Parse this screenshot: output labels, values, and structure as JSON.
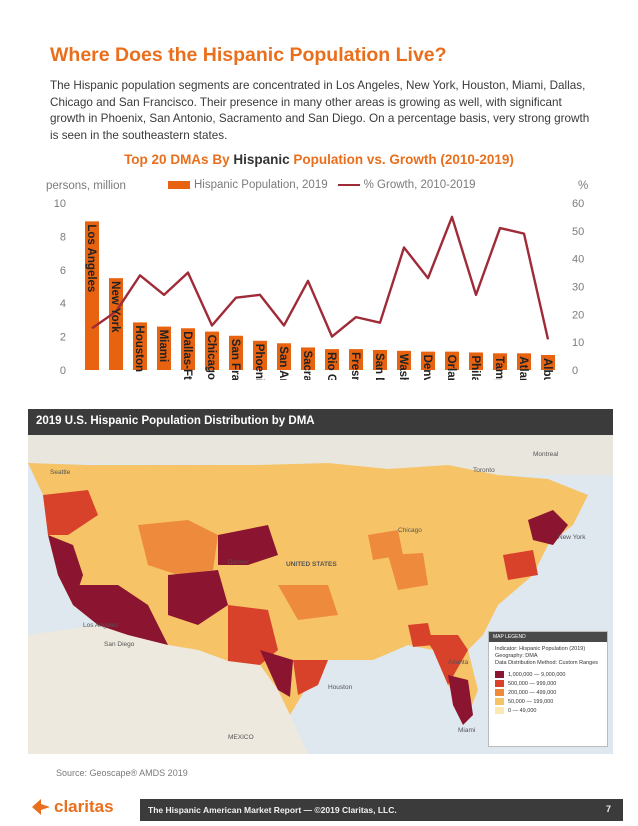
{
  "title": "Where Does the Hispanic Population Live?",
  "intro": "The Hispanic population segments are concentrated in Los Angeles, New York, Houston, Miami, Dallas, Chicago and San Francisco. Their presence in many other areas is growing as well, with significant growth in Phoenix, San Antonio, Sacramento and San Diego. On a percentage basis, very strong growth is seen in the southeastern states.",
  "chart_title": {
    "part1": "Top 20 DMAs By ",
    "highlight": "Hispanic",
    "part2": " Population vs. Growth (2010-2019)"
  },
  "chart_data": {
    "type": "bar",
    "title": "Top 20 DMAs By Hispanic Population vs. Growth (2010-2019)",
    "y_left_label": "persons, million",
    "y_right_label": "%",
    "ylim_left": [
      0,
      10
    ],
    "ylim_right": [
      0,
      60
    ],
    "y_left_ticks": [
      0,
      2,
      4,
      6,
      8,
      10
    ],
    "y_right_ticks": [
      0,
      10,
      20,
      30,
      40,
      50,
      60
    ],
    "categories": [
      "Los Angeles",
      "New York",
      "Houston",
      "Miami",
      "Dallas-Ft. Worth",
      "Chicago",
      "San Francisco",
      "Phoenix",
      "San Antonio",
      "Sacramento",
      "Rio Grande Valley",
      "Fresno-Visalia",
      "San Diego",
      "Washington, DC",
      "Denver",
      "Orlando",
      "Philadelphia",
      "Tampa-St. Petersburg",
      "Atlanta",
      "Albuquerque"
    ],
    "series": [
      {
        "name": "Hispanic Population, 2019",
        "type": "bar",
        "axis": "left",
        "color": "#e8630f",
        "values": [
          8.9,
          5.5,
          2.85,
          2.6,
          2.5,
          2.3,
          2.05,
          1.75,
          1.6,
          1.35,
          1.25,
          1.25,
          1.2,
          1.15,
          1.1,
          1.1,
          1.05,
          1.0,
          1.0,
          0.9
        ]
      },
      {
        "name": "% Growth, 2010-2019",
        "type": "line",
        "axis": "right",
        "color": "#9f2b38",
        "values": [
          15,
          21,
          34,
          27,
          35,
          16,
          26,
          27,
          16,
          32,
          12,
          19,
          17,
          44,
          33,
          55,
          27,
          51,
          49,
          11
        ]
      }
    ],
    "legend_position": "top"
  },
  "map": {
    "header": "2019 U.S. Hispanic Population Distribution by DMA",
    "labels": [
      "UNITED STATES",
      "MEXICO",
      "Toronto",
      "Montreal",
      "Seattle",
      "Chicago",
      "Houston",
      "Miami",
      "Los Angeles",
      "San Diego",
      "Denver",
      "Atlanta",
      "New York"
    ],
    "legend": {
      "header": "MAP LEGEND",
      "indicator": "Indicator: Hispanic Population (2019)",
      "geography": "Geography: DMA",
      "method": "Data Distribution Method: Custom Ranges",
      "ranges": [
        {
          "from": "1,000,000",
          "to": "9,000,000",
          "color": "#8b1430"
        },
        {
          "from": "500,000",
          "to": "999,000",
          "color": "#d8412a"
        },
        {
          "from": "200,000",
          "to": "499,000",
          "color": "#ee8a3c"
        },
        {
          "from": "50,000",
          "to": "199,000",
          "color": "#f6c466"
        },
        {
          "from": "0",
          "to": "49,000",
          "color": "#fbe9b3"
        }
      ]
    }
  },
  "source": "Source: Geoscape® AMDS 2019",
  "footer": {
    "logo": "claritas",
    "text": "The Hispanic American Market Report — ©2019 Claritas, LLC.",
    "page": "7"
  }
}
